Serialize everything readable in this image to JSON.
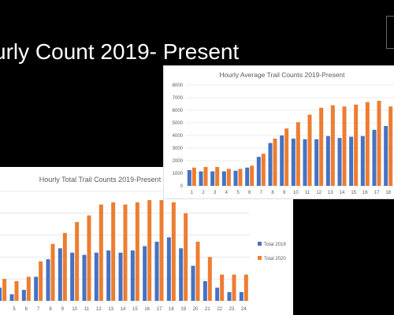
{
  "slide": {
    "title": "urly Count 2019- Present"
  },
  "chart_data": [
    {
      "id": "avg",
      "type": "bar",
      "title": "Hourly Average Trail Counts 2019-Present",
      "categories": [
        "1",
        "2",
        "3",
        "4",
        "5",
        "6",
        "7",
        "8",
        "9",
        "10",
        "11",
        "12",
        "13",
        "14",
        "15",
        "16",
        "17",
        "18"
      ],
      "series": [
        {
          "name": "",
          "color": "#4472C4",
          "values": [
            1250,
            1150,
            1150,
            1150,
            1200,
            1450,
            2300,
            3400,
            4000,
            3750,
            3700,
            3700,
            3950,
            3800,
            3900,
            3950,
            4450,
            4750
          ]
        },
        {
          "name": "",
          "color": "#ED7D31",
          "values": [
            1450,
            1500,
            1500,
            1350,
            1350,
            1600,
            2550,
            3750,
            4550,
            5050,
            5650,
            6200,
            6400,
            6300,
            6450,
            6650,
            6750,
            6300
          ]
        }
      ],
      "ylim": [
        0,
        8000
      ],
      "yticks": [
        0,
        1000,
        2000,
        3000,
        4000,
        5000,
        6000,
        7000,
        8000
      ],
      "ytick_labels": [
        "0",
        "1000",
        "2000",
        "3000",
        "4000",
        "5000",
        "6000",
        "7000",
        "8000"
      ],
      "grid": true,
      "legend": "none"
    },
    {
      "id": "total",
      "type": "bar",
      "title": "Hourly Total Trail Counts 2019-Present",
      "categories": [
        "",
        "5",
        "6",
        "7",
        "8",
        "9",
        "10",
        "11",
        "12",
        "13",
        "14",
        "15",
        "16",
        "17",
        "18",
        "19",
        "20",
        "21",
        "22",
        "23",
        "24"
      ],
      "series": [
        {
          "name": "Total 2019",
          "color": "#4472C4",
          "values": [
            6,
            3,
            5,
            11,
            19,
            24,
            22,
            21,
            22,
            23,
            22,
            23,
            25,
            27,
            29,
            24,
            16,
            9,
            6,
            4,
            4
          ]
        },
        {
          "name": "Total 2020",
          "color": "#ED7D31",
          "values": [
            10,
            9,
            11,
            18,
            26,
            31,
            36,
            39,
            44,
            45,
            44,
            45,
            46,
            46,
            45,
            40,
            27,
            20,
            12,
            12,
            12
          ]
        }
      ],
      "ylim": [
        0,
        50
      ],
      "grid": true,
      "legend": "right"
    }
  ]
}
